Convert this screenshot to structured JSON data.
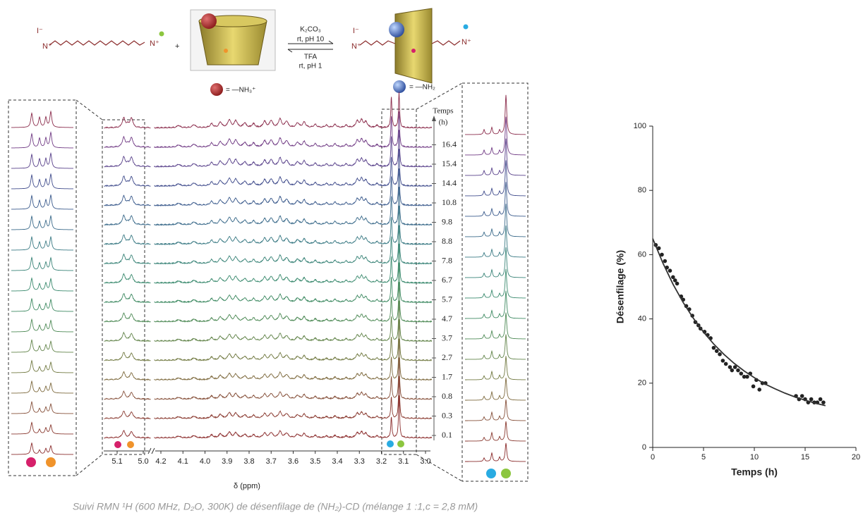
{
  "scheme": {
    "plus": "+",
    "counterion": "I⁻",
    "ammonium": "N⁺",
    "reagent_forward": [
      "K₂CO₃",
      "rt, pH 10"
    ],
    "reagent_backward": [
      "TFA",
      "rt, pH 1"
    ],
    "legend_red": "= —NH₃⁺",
    "legend_blue": "= —NH₂"
  },
  "spectra": {
    "x_label": "δ (ppm)",
    "time_label": [
      "Temps",
      "(h)"
    ],
    "times": [
      16.4,
      15.4,
      14.4,
      10.8,
      9.8,
      8.8,
      7.8,
      6.7,
      5.7,
      4.7,
      3.7,
      2.7,
      1.7,
      0.8,
      0.3,
      0.1
    ],
    "ppm_ticks": [
      5.1,
      {
        "value": 5,
        "label": "5.0"
      },
      4.2,
      4.1,
      {
        "value": 4,
        "label": "4.0"
      },
      3.9,
      3.8,
      3.7,
      3.6,
      3.5,
      3.4,
      3.3,
      3.2,
      3.1,
      {
        "value": 3,
        "label": "3.0"
      }
    ]
  },
  "caption": "Suivi RMN ¹H (600 MHz, D₂O, 300K) de désenfilage de (NH₂)-CD (mélange 1 :1,c = 2,8 mM)",
  "chart_data": {
    "type": "scatter",
    "x_label": "Temps (h)",
    "y_label": "Désenfilage (%)",
    "xlim": [
      0,
      20
    ],
    "ylim": [
      0,
      100
    ],
    "xticks": [
      0,
      5,
      10,
      15,
      20
    ],
    "yticks": [
      0,
      20,
      40,
      60,
      80,
      100
    ],
    "series": [
      {
        "type": "scatter",
        "color": "#222222",
        "x": [
          0.3,
          0.6,
          0.9,
          1.2,
          1.4,
          1.7,
          2.0,
          2.2,
          2.4,
          2.8,
          3.0,
          3.3,
          3.6,
          3.9,
          4.2,
          4.5,
          4.7,
          5.1,
          5.4,
          5.7,
          6.0,
          6.3,
          6.6,
          6.9,
          7.2,
          7.6,
          7.8,
          8.1,
          8.4,
          8.7,
          9.0,
          9.3,
          9.6,
          9.9,
          10.2,
          10.5,
          10.8,
          11.1,
          14.1,
          14.4,
          14.7,
          15.0,
          15.3,
          15.6,
          15.9,
          16.2,
          16.5,
          16.8
        ],
        "values": [
          63,
          62,
          60,
          58,
          56,
          55,
          53,
          52,
          51,
          47,
          46,
          44,
          43,
          41,
          39,
          38,
          37,
          36,
          35,
          34,
          31,
          30,
          29,
          27,
          26,
          25,
          24,
          25,
          24,
          23,
          22,
          22,
          23,
          19,
          21,
          18,
          20,
          20,
          16,
          15,
          16,
          15,
          14,
          15,
          14,
          14,
          15,
          14
        ]
      },
      {
        "type": "line",
        "color": "#333333",
        "x": [
          0,
          1,
          2,
          3,
          4,
          5,
          6,
          7,
          8,
          9,
          10,
          11,
          12,
          13,
          14,
          15,
          16,
          17
        ],
        "values": [
          65,
          57.4,
          50.8,
          45.1,
          40.2,
          35.9,
          32.2,
          29.0,
          26.2,
          23.8,
          21.7,
          19.8,
          18.3,
          16.9,
          15.7,
          14.7,
          13.8,
          13.0
        ]
      }
    ]
  }
}
